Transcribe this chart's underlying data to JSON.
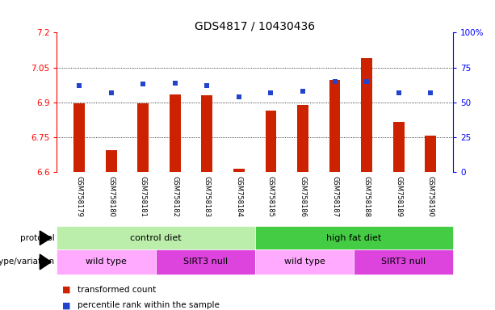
{
  "title": "GDS4817 / 10430436",
  "samples": [
    "GSM758179",
    "GSM758180",
    "GSM758181",
    "GSM758182",
    "GSM758183",
    "GSM758184",
    "GSM758185",
    "GSM758186",
    "GSM758187",
    "GSM758188",
    "GSM758189",
    "GSM758190"
  ],
  "bar_values": [
    6.895,
    6.695,
    6.895,
    6.935,
    6.93,
    6.615,
    6.865,
    6.89,
    6.995,
    7.09,
    6.815,
    6.755
  ],
  "bar_base": 6.6,
  "percentile_values": [
    62,
    57,
    63,
    64,
    62,
    54,
    57,
    58,
    65,
    65,
    57,
    57
  ],
  "ylim_left": [
    6.6,
    7.2
  ],
  "ylim_right": [
    0,
    100
  ],
  "yticks_left": [
    6.6,
    6.75,
    6.9,
    7.05,
    7.2
  ],
  "yticks_right": [
    0,
    25,
    50,
    75,
    100
  ],
  "ytick_labels_left": [
    "6.6",
    "6.75",
    "6.9",
    "7.05",
    "7.2"
  ],
  "ytick_labels_right": [
    "0",
    "25",
    "50",
    "75",
    "100%"
  ],
  "hlines": [
    6.75,
    6.9,
    7.05
  ],
  "bar_color": "#cc2200",
  "dot_color": "#2244cc",
  "protocol_labels": [
    "control diet",
    "high fat diet"
  ],
  "protocol_colors": [
    "#bbeeaa",
    "#44cc44"
  ],
  "genotype_labels": [
    "wild type",
    "SIRT3 null",
    "wild type",
    "SIRT3 null"
  ],
  "genotype_colors": [
    "#ffaaff",
    "#dd44dd",
    "#ffaaff",
    "#dd44dd"
  ],
  "protocol_row_label": "protocol",
  "genotype_row_label": "genotype/variation",
  "legend_bar_label": "transformed count",
  "legend_dot_label": "percentile rank within the sample",
  "fig_width": 6.13,
  "fig_height": 3.84,
  "title_fontsize": 10,
  "tick_fontsize": 7.5,
  "bar_width": 0.35
}
